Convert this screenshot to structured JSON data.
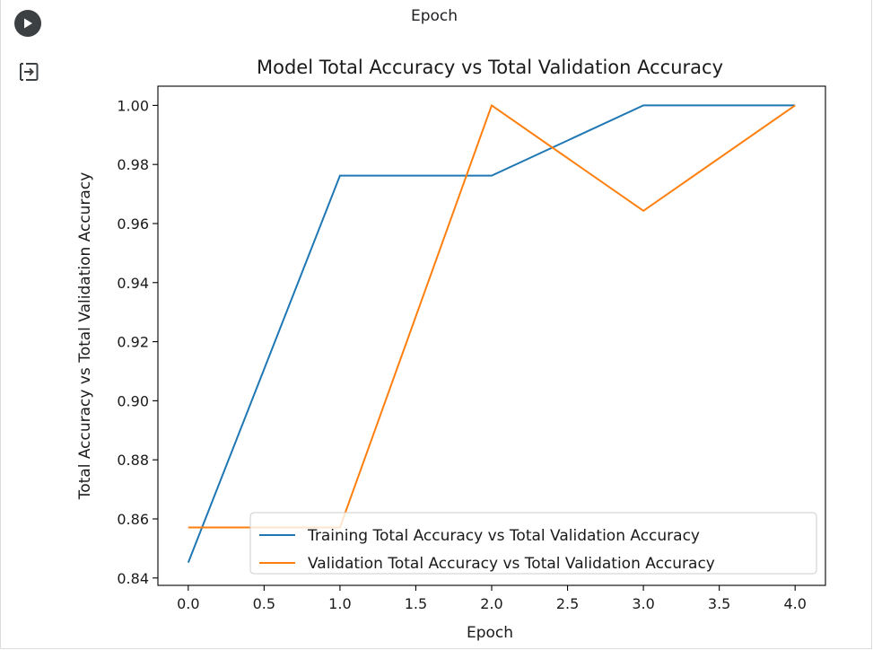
{
  "output_header": "Epoch",
  "icons": {
    "run": "play-icon",
    "output": "output-toggle-icon"
  },
  "colors": {
    "training": "#1f77b4",
    "validation": "#ff7f0e"
  },
  "chart_data": {
    "type": "line",
    "title": "Model Total Accuracy vs Total Validation Accuracy",
    "xlabel": "Epoch",
    "ylabel": "Total Accuracy vs Total Validation Accuracy",
    "xlim": [
      -0.2,
      4.2
    ],
    "ylim": [
      0.8375,
      1.0065
    ],
    "x_ticks": [
      "0.0",
      "0.5",
      "1.0",
      "1.5",
      "2.0",
      "2.5",
      "3.0",
      "3.5",
      "4.0"
    ],
    "y_ticks": [
      "0.84",
      "0.86",
      "0.88",
      "0.90",
      "0.92",
      "0.94",
      "0.96",
      "0.98",
      "1.00"
    ],
    "grid": false,
    "legend_position": "lower-right",
    "x": [
      0,
      1,
      2,
      3,
      4
    ],
    "series": [
      {
        "name": "Training Total Accuracy vs Total Validation Accuracy",
        "values": [
          0.8452,
          0.9762,
          0.9762,
          1.0,
          1.0
        ]
      },
      {
        "name": "Validation Total Accuracy vs Total Validation Accuracy",
        "values": [
          0.8571,
          0.8571,
          1.0,
          0.9643,
          1.0
        ]
      }
    ]
  }
}
